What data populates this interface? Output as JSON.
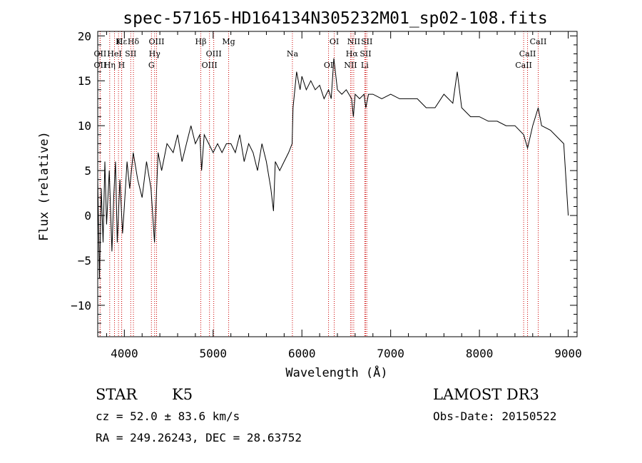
{
  "chart_data": {
    "type": "line",
    "title": "spec-57165-HD164134N305232M01_sp02-108.fits",
    "xlabel": "Wavelength (Å)",
    "ylabel": "Flux (relative)",
    "xlim": [
      3700,
      9100
    ],
    "ylim": [
      -13.5,
      20.5
    ],
    "xticks": [
      4000,
      5000,
      6000,
      7000,
      8000,
      9000
    ],
    "yticks": [
      -10,
      -5,
      0,
      5,
      10,
      15,
      20
    ],
    "tick_labels_y": [
      "−10",
      "−5",
      "0",
      "5",
      "10",
      "15",
      "20"
    ],
    "grid": false,
    "series": [
      {
        "color": "#000000",
        "x": [
          3700,
          3720,
          3740,
          3760,
          3780,
          3800,
          3830,
          3860,
          3880,
          3900,
          3920,
          3950,
          3980,
          4000,
          4030,
          4060,
          4100,
          4150,
          4200,
          4250,
          4300,
          4340,
          4380,
          4420,
          4480,
          4550,
          4600,
          4650,
          4700,
          4750,
          4800,
          4850,
          4870,
          4900,
          4950,
          5000,
          5050,
          5100,
          5150,
          5200,
          5250,
          5300,
          5350,
          5400,
          5450,
          5500,
          5550,
          5600,
          5650,
          5680,
          5700,
          5750,
          5800,
          5850,
          5890,
          5900,
          5920,
          5940,
          5960,
          5980,
          6000,
          6050,
          6100,
          6150,
          6200,
          6250,
          6300,
          6330,
          6360,
          6400,
          6450,
          6500,
          6560,
          6580,
          6600,
          6650,
          6700,
          6720,
          6750,
          6800,
          6900,
          7000,
          7100,
          7200,
          7300,
          7400,
          7500,
          7600,
          7700,
          7750,
          7800,
          7900,
          8000,
          8100,
          8200,
          8300,
          8400,
          8498,
          8542,
          8600,
          8662,
          8700,
          8800,
          8900,
          8950,
          9000
        ],
        "values": [
          4,
          -7,
          3,
          -3,
          6,
          -1,
          5,
          -4,
          2,
          6,
          -3,
          4,
          -2,
          1,
          6,
          3,
          7,
          4,
          2,
          6,
          3,
          -3,
          7,
          5,
          8,
          7,
          9,
          6,
          8,
          10,
          8,
          9,
          5,
          9,
          8,
          7,
          8,
          7,
          8,
          8,
          7,
          9,
          6,
          8,
          7,
          5,
          8,
          6,
          3,
          0.5,
          6,
          5,
          6,
          7,
          8,
          12,
          14,
          16,
          15,
          14,
          15.5,
          14,
          15,
          14,
          14.5,
          13,
          14,
          13,
          17.5,
          14,
          13.5,
          14,
          13,
          11,
          13.5,
          13,
          13.5,
          12,
          13.5,
          13.5,
          13,
          13.5,
          13,
          13,
          13,
          12,
          12,
          13.5,
          12.5,
          16,
          12,
          11,
          11,
          10.5,
          10.5,
          10,
          10,
          9,
          7.5,
          10,
          12,
          10,
          9.5,
          8.5,
          8,
          0
        ]
      }
    ],
    "lines": [
      {
        "label": "Hε",
        "x": 3970
      },
      {
        "label": "OII",
        "x": 3727
      },
      {
        "label": "OII",
        "x": 3727
      },
      {
        "label": "K",
        "x": 3934
      },
      {
        "label": "HeI",
        "x": 3889
      },
      {
        "label": "Hη",
        "x": 3835
      },
      {
        "label": "Hδ",
        "x": 4102
      },
      {
        "label": "SII",
        "x": 4072
      },
      {
        "label": "H",
        "x": 3969
      },
      {
        "label": "OIII",
        "x": 4363
      },
      {
        "label": "Hγ",
        "x": 4341
      },
      {
        "label": "G",
        "x": 4305
      },
      {
        "label": "Hβ",
        "x": 4861
      },
      {
        "label": "OIII",
        "x": 5007
      },
      {
        "label": "OIII",
        "x": 4959
      },
      {
        "label": "Mg",
        "x": 5175
      },
      {
        "label": "Na",
        "x": 5893
      },
      {
        "label": "OI",
        "x": 6300
      },
      {
        "label": "OI",
        "x": 6364
      },
      {
        "label": "Hα",
        "x": 6563
      },
      {
        "label": "NII",
        "x": 6548
      },
      {
        "label": "NII",
        "x": 6584
      },
      {
        "label": "SII",
        "x": 6717
      },
      {
        "label": "Li",
        "x": 6708
      },
      {
        "label": "SII",
        "x": 6731
      },
      {
        "label": "CaII",
        "x": 8542
      },
      {
        "label": "CaII",
        "x": 8498
      },
      {
        "label": "CaII",
        "x": 8662
      }
    ]
  },
  "info": {
    "class": "STAR",
    "subclass": "K5",
    "survey": "LAMOST DR3",
    "cz": "cz = 52.0 ± 83.6 km/s",
    "obs_date": "Obs-Date: 20150522",
    "radec": "RA = 249.26243, DEC =  28.63752"
  }
}
